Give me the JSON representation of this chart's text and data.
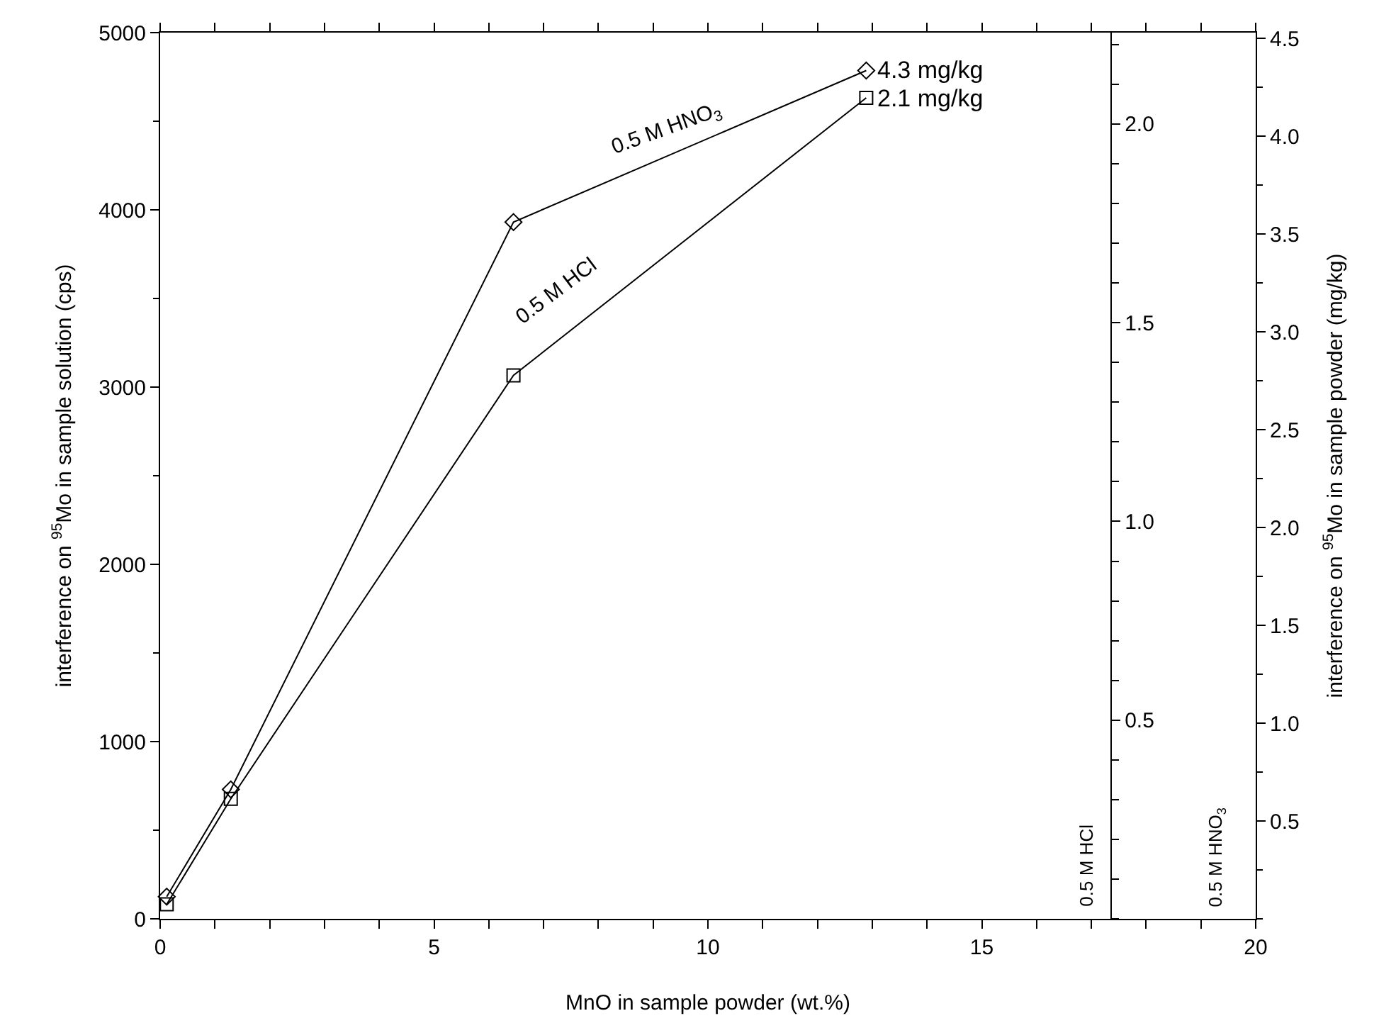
{
  "chart_data": {
    "type": "line",
    "xlabel": "MnO in sample powder (wt.%)",
    "ylabel": "interference on $^{95}$Mo in sample solution (cps)",
    "y2label": "0.5 M HCl",
    "y3label": "interference on $^{95}$Mo in sample powder (mg/kg)",
    "x": [
      0.12,
      1.29,
      6.45,
      12.89
    ],
    "series": [
      {
        "name": "0.5 M HNO$_{3}$",
        "color": "#000000",
        "marker": "diamond",
        "values": [
          125,
          730,
          3931,
          4786
        ]
      },
      {
        "name": "0.5 M HCl",
        "color": "#000000",
        "marker": "square",
        "values": [
          82,
          677,
          3066,
          4632
        ]
      }
    ],
    "xlim": [
      0,
      20
    ],
    "xticks": [
      0,
      5,
      10,
      15,
      20
    ],
    "ylim": [
      0,
      5000
    ],
    "yticks": [
      0,
      1000,
      2000,
      3000,
      4000,
      5000
    ],
    "y2lim": [
      0,
      2.23
    ],
    "y2ticks": [
      {
        "value": 0.5,
        "label": "0.5"
      },
      {
        "value": 1.0,
        "label": "1.0"
      },
      {
        "value": 1.5,
        "label": "1.5"
      },
      {
        "value": 2.0,
        "label": "2.0"
      }
    ],
    "y3lim": [
      0,
      4.53
    ],
    "y3ticks": [
      {
        "value": 0.5,
        "label": "0.5"
      },
      {
        "value": 1.0,
        "label": "1.0"
      },
      {
        "value": 1.5,
        "label": "1.5"
      },
      {
        "value": 2.0,
        "label": "2.0"
      },
      {
        "value": 2.5,
        "label": "2.5"
      },
      {
        "value": 3.0,
        "label": "3.0"
      },
      {
        "value": 3.5,
        "label": "3.5"
      },
      {
        "value": 4.0,
        "label": "4.0"
      },
      {
        "value": 4.5,
        "label": "4.5"
      }
    ],
    "annotations": [
      {
        "text": "4.3 mg/kg",
        "x": 12.89,
        "y": 4786
      },
      {
        "text": "2.1 mg/kg",
        "x": 12.89,
        "y": 4632
      },
      "0.5 M HNO$_{3}$"
    ],
    "line_style": "solid",
    "legend": false
  }
}
